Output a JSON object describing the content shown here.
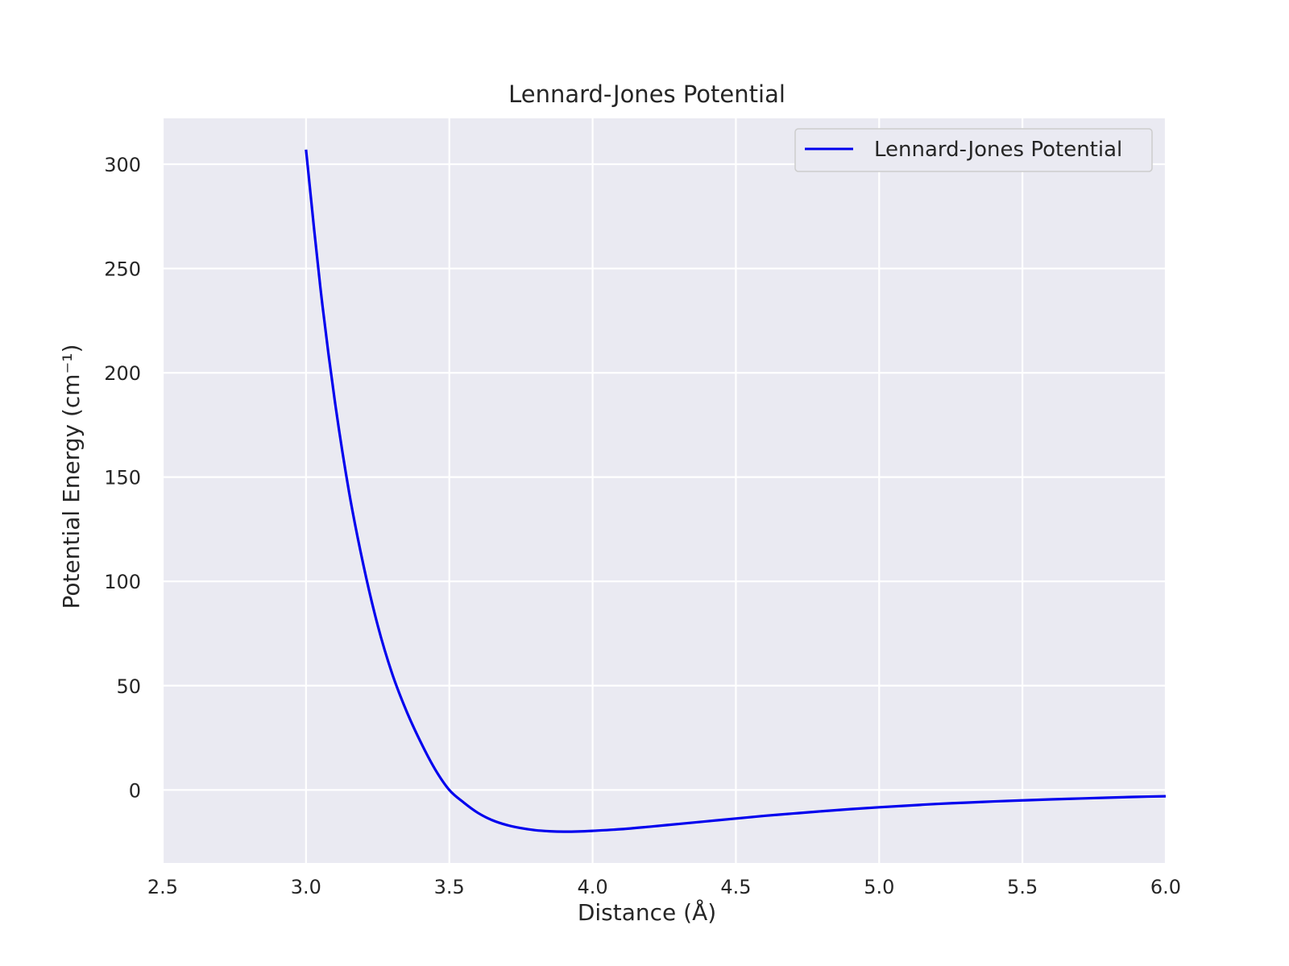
{
  "chart_data": {
    "type": "line",
    "title": "Lennard-Jones Potential",
    "xlabel": "Distance (Å)",
    "ylabel": "Potential Energy (cm⁻¹)",
    "xlim": [
      2.5,
      6.0
    ],
    "ylim": [
      -35,
      322
    ],
    "xticks": [
      "2.5",
      "3.0",
      "3.5",
      "4.0",
      "4.5",
      "5.0",
      "5.5",
      "6.0"
    ],
    "yticks": [
      "0",
      "50",
      "100",
      "150",
      "200",
      "250",
      "300"
    ],
    "grid": true,
    "legend_position": "top-right",
    "series": [
      {
        "name": "Lennard-Jones Potential",
        "color": "#0000ee",
        "x": [
          3.0,
          3.05,
          3.1,
          3.15,
          3.2,
          3.25,
          3.3,
          3.35,
          3.4,
          3.45,
          3.5,
          3.55,
          3.6,
          3.65,
          3.7,
          3.75,
          3.8,
          3.85,
          3.9,
          3.95,
          4.0,
          4.1,
          4.2,
          4.3,
          4.4,
          4.5,
          4.6,
          4.7,
          4.8,
          4.9,
          5.0,
          5.1,
          5.2,
          5.3,
          5.4,
          5.5,
          5.6,
          5.7,
          5.8,
          5.9,
          6.0
        ],
        "y": [
          307,
          241,
          187,
          143,
          108,
          79,
          56,
          38,
          23,
          10,
          0,
          -6,
          -11,
          -14.5,
          -16.8,
          -18.3,
          -19.3,
          -19.8,
          -20.0,
          -19.9,
          -19.6,
          -18.8,
          -17.6,
          -16.3,
          -15.0,
          -13.7,
          -12.4,
          -11.3,
          -10.2,
          -9.2,
          -8.3,
          -7.5,
          -6.7,
          -6.1,
          -5.5,
          -5.0,
          -4.5,
          -4.1,
          -3.7,
          -3.3,
          -3.0
        ]
      }
    ]
  }
}
